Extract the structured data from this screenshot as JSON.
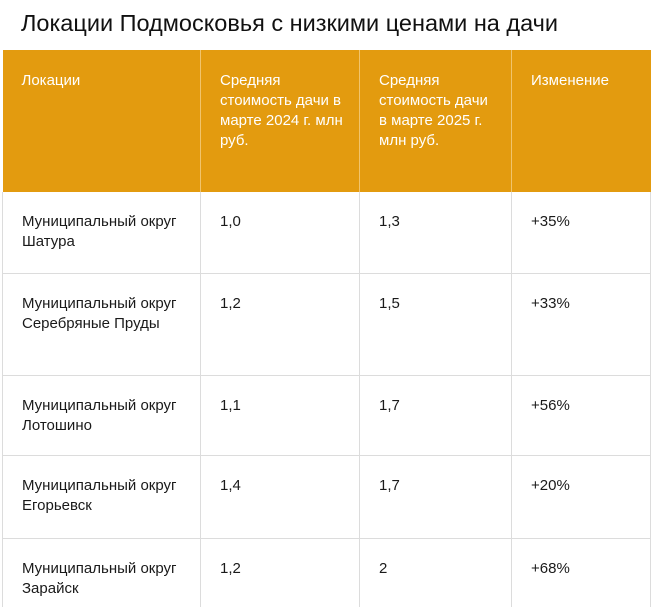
{
  "title": "Локации Подмосковья с низкими ценами на дачи",
  "colors": {
    "header_background": "#e39b0f",
    "header_text": "#ffffff",
    "grid_line": "#dcdcdc"
  },
  "table": {
    "headers": [
      "Локации",
      "Средняя стоимость дачи в марте 2024 г. млн руб.",
      "Средняя стоимость дачи в марте 2025 г. млн руб.",
      "Изменение"
    ],
    "rows": [
      [
        "Муниципальный округ Шатура",
        "1,0",
        "1,3",
        "+35%"
      ],
      [
        "Муниципальный округ Серебряные Пруды",
        "1,2",
        "1,5",
        "+33%"
      ],
      [
        "Муниципальный округ Лотошино",
        "1,1",
        "1,7",
        "+56%"
      ],
      [
        "Муниципальный округ Егорьевск",
        "1,4",
        "1,7",
        "+20%"
      ],
      [
        "Муниципальный округ Зарайск",
        "1,2",
        "2",
        "+68%"
      ]
    ]
  }
}
